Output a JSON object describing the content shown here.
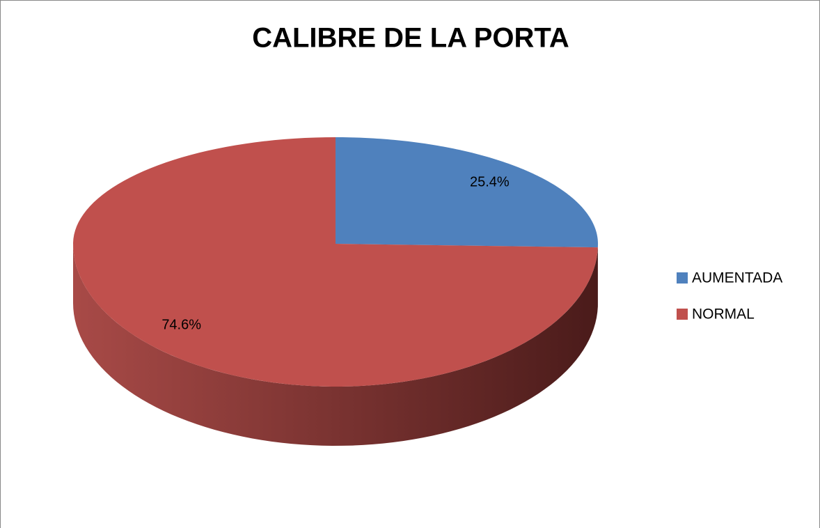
{
  "chart_data": {
    "type": "pie",
    "title": "CALIBRE DE LA PORTA",
    "categories": [
      "AUMENTADA",
      "NORMAL"
    ],
    "values": [
      25.4,
      74.6
    ],
    "value_labels": [
      "25.4%",
      "74.6%"
    ],
    "colors": [
      "#4f81bd",
      "#c0504d"
    ],
    "legend": "right"
  }
}
